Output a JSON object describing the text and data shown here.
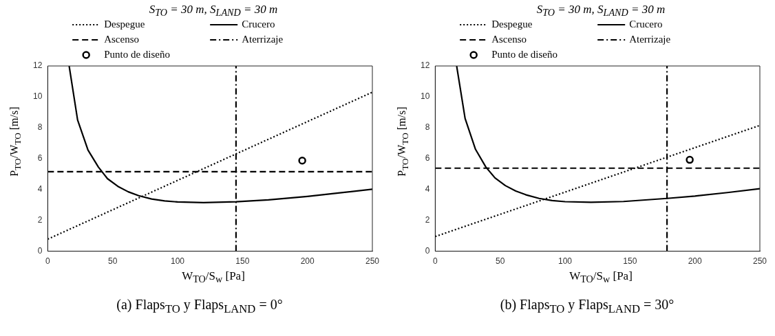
{
  "chart_data": [
    {
      "type": "line",
      "title": "S$_{TO}$ = 30 m, S$_{LAND}$ = 30 m",
      "xlabel": "W$_{TO}$/S$_{w}$ [Pa]",
      "ylabel": "P$_{TO}$/W$_{TO}$ [m/s]",
      "annotations": [
        "(a) Flaps$_{TO}$ y Flaps$_{LAND}$ = 0°"
      ],
      "xlim": [
        0,
        250
      ],
      "xticks": [
        0,
        50,
        100,
        150,
        200,
        250
      ],
      "ylim": [
        0,
        12
      ],
      "yticks": [
        0,
        2,
        4,
        6,
        8,
        10,
        12
      ],
      "grid": false,
      "legend": "top",
      "series": [
        {
          "name": "Despegue",
          "type": "line",
          "color": "#000000",
          "line_style": "dotted",
          "marker": "none",
          "x": [
            0,
            250
          ],
          "values": [
            0.78,
            10.3
          ]
        },
        {
          "name": "Crucero",
          "type": "line",
          "color": "#000000",
          "line_style": "solid",
          "marker": "none",
          "x": [
            16.5,
            23,
            31,
            39,
            46,
            54,
            62,
            70,
            80,
            90,
            100,
            120,
            145,
            170,
            200,
            225,
            250
          ],
          "values": [
            12,
            8.5,
            6.55,
            5.45,
            4.7,
            4.2,
            3.85,
            3.6,
            3.38,
            3.26,
            3.19,
            3.15,
            3.2,
            3.33,
            3.55,
            3.78,
            4.02
          ]
        },
        {
          "name": "Ascenso",
          "type": "line",
          "color": "#000000",
          "line_style": "dashed",
          "marker": "none",
          "x": [
            0,
            250
          ],
          "values": [
            5.15,
            5.15
          ]
        },
        {
          "name": "Aterrizaje",
          "type": "line",
          "color": "#000000",
          "line_style": "dashdot",
          "marker": "none",
          "x": [
            145,
            145
          ],
          "values": [
            0,
            12
          ]
        },
        {
          "name": "Punto de diseño",
          "type": "scatter",
          "color": "#000000",
          "marker": "circle",
          "x": [
            196
          ],
          "values": [
            5.87
          ]
        }
      ]
    },
    {
      "type": "line",
      "title": "S$_{TO}$ = 30 m, S$_{LAND}$ = 30 m",
      "xlabel": "W$_{TO}$/S$_{w}$ [Pa]",
      "ylabel": "P$_{TO}$/W$_{TO}$ [m/s]",
      "annotations": [
        "(b) Flaps$_{TO}$ y Flaps$_{LAND}$ = 30°"
      ],
      "xlim": [
        0,
        250
      ],
      "xticks": [
        0,
        50,
        100,
        150,
        200,
        250
      ],
      "ylim": [
        0,
        12
      ],
      "yticks": [
        0,
        2,
        4,
        6,
        8,
        10,
        12
      ],
      "grid": false,
      "legend": "top",
      "series": [
        {
          "name": "Despegue",
          "type": "line",
          "color": "#000000",
          "line_style": "dotted",
          "marker": "none",
          "x": [
            0,
            250
          ],
          "values": [
            0.95,
            8.15
          ]
        },
        {
          "name": "Crucero",
          "type": "line",
          "color": "#000000",
          "line_style": "solid",
          "marker": "none",
          "x": [
            16.5,
            23,
            31,
            39,
            46,
            54,
            62,
            70,
            80,
            90,
            100,
            120,
            145,
            178.5,
            200,
            225,
            250
          ],
          "values": [
            12,
            8.6,
            6.6,
            5.45,
            4.75,
            4.25,
            3.9,
            3.65,
            3.42,
            3.28,
            3.21,
            3.17,
            3.22,
            3.42,
            3.57,
            3.8,
            4.05
          ]
        },
        {
          "name": "Ascenso",
          "type": "line",
          "color": "#000000",
          "line_style": "dashed",
          "marker": "none",
          "x": [
            0,
            250
          ],
          "values": [
            5.38,
            5.38
          ]
        },
        {
          "name": "Aterrizaje",
          "type": "line",
          "color": "#000000",
          "line_style": "dashdot",
          "marker": "none",
          "x": [
            178.5,
            178.5
          ],
          "values": [
            0,
            12
          ]
        },
        {
          "name": "Punto de diseño",
          "type": "scatter",
          "color": "#000000",
          "marker": "circle",
          "x": [
            196
          ],
          "values": [
            5.92
          ]
        }
      ]
    }
  ]
}
